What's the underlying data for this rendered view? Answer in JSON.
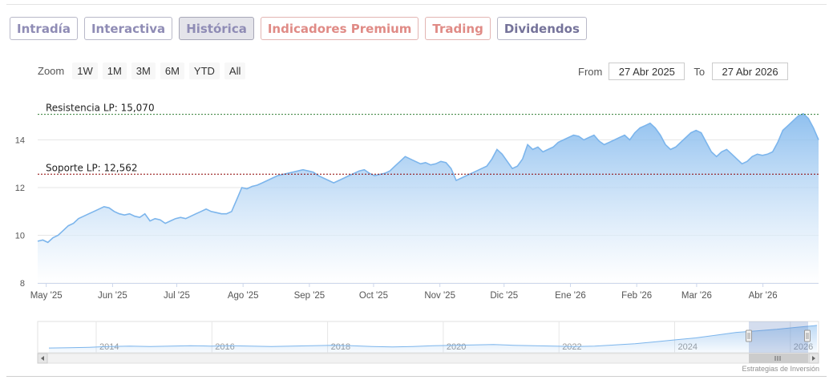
{
  "tabs": [
    {
      "label": "Intradía",
      "style": "normal"
    },
    {
      "label": "Interactiva",
      "style": "normal"
    },
    {
      "label": "Histórica",
      "style": "active"
    },
    {
      "label": "Indicadores Premium",
      "style": "premium"
    },
    {
      "label": "Trading",
      "style": "premium"
    },
    {
      "label": "Dividendos",
      "style": "dark"
    }
  ],
  "zoom": {
    "label": "Zoom",
    "buttons": [
      "1W",
      "1M",
      "3M",
      "6M",
      "YTD",
      "All"
    ]
  },
  "range": {
    "from_label": "From",
    "from_value": "27 Abr 2025",
    "to_label": "To",
    "to_value": "27 Abr 2026"
  },
  "credit": "Estrategias de Inversión",
  "colors": {
    "series_line": "#7cb5ec",
    "series_fill_top": "#7cb5ec",
    "series_fill_bottom": "#ffffff",
    "resistance_line": "#2e7d32",
    "support_line": "#8b0000",
    "tab_text": "#8f8cb5",
    "tab_premium": "#e08b86"
  },
  "chart_data": {
    "type": "area",
    "series": [
      {
        "values": [
          9.75,
          9.8,
          9.7,
          9.9,
          10.0,
          10.2,
          10.4,
          10.5,
          10.7,
          10.8,
          10.9,
          11.0,
          11.1,
          11.2,
          11.15,
          11.0,
          10.9,
          10.85,
          10.9,
          10.8,
          10.75,
          10.9,
          10.6,
          10.7,
          10.65,
          10.5,
          10.6,
          10.7,
          10.75,
          10.7,
          10.8,
          10.9,
          11.0,
          11.1,
          11.0,
          10.95,
          10.9,
          10.9,
          11.0,
          11.5,
          12.0,
          11.95,
          12.05,
          12.1,
          12.2,
          12.3,
          12.4,
          12.5,
          12.55,
          12.6,
          12.65,
          12.7,
          12.75,
          12.7,
          12.65,
          12.5,
          12.4,
          12.3,
          12.2,
          12.3,
          12.4,
          12.5,
          12.6,
          12.7,
          12.75,
          12.6,
          12.5,
          12.55,
          12.6,
          12.7,
          12.9,
          13.1,
          13.3,
          13.2,
          13.1,
          13.0,
          13.05,
          12.95,
          13.0,
          13.1,
          13.05,
          12.8,
          12.3,
          12.4,
          12.5,
          12.6,
          12.7,
          12.8,
          12.9,
          13.2,
          13.6,
          13.4,
          13.1,
          12.8,
          12.9,
          13.2,
          13.8,
          13.6,
          13.7,
          13.5,
          13.6,
          13.7,
          13.9,
          14.0,
          14.1,
          14.2,
          14.15,
          14.0,
          14.1,
          14.2,
          13.95,
          13.8,
          13.9,
          14.0,
          14.1,
          14.2,
          14.0,
          14.3,
          14.5,
          14.6,
          14.7,
          14.5,
          14.2,
          13.8,
          13.6,
          13.7,
          13.9,
          14.1,
          14.3,
          14.4,
          14.3,
          13.9,
          13.5,
          13.3,
          13.5,
          13.6,
          13.4,
          13.2,
          13.0,
          13.1,
          13.3,
          13.4,
          13.35,
          13.4,
          13.5,
          13.9,
          14.4,
          14.6,
          14.8,
          15.0,
          15.1,
          14.9,
          14.5,
          14.0
        ]
      }
    ],
    "x_start": "2025-04-27",
    "x_end": "2026-04-27",
    "x_ticks": [
      "May '25",
      "Jun '25",
      "Jul '25",
      "Ago '25",
      "Sep '25",
      "Oct '25",
      "Nov '25",
      "Dic '25",
      "Ene '26",
      "Feb '26",
      "Mar '26",
      "Abr '26"
    ],
    "x_tick_dates": [
      "2025-05-01",
      "2025-06-01",
      "2025-07-01",
      "2025-08-01",
      "2025-09-01",
      "2025-10-01",
      "2025-11-01",
      "2025-12-01",
      "2026-01-01",
      "2026-02-01",
      "2026-03-01",
      "2026-04-01"
    ],
    "y_ticks": [
      8,
      10,
      12,
      14
    ],
    "ylim": [
      8,
      16
    ],
    "grid": true,
    "reference_lines": [
      {
        "label": "Resistencia LP: 15,070",
        "value": 15.07,
        "style": "resistance"
      },
      {
        "label": "Soporte LP: 12,562",
        "value": 12.562,
        "style": "support"
      }
    ],
    "navigator": {
      "year_labels": [
        "2014",
        "2016",
        "2018",
        "2020",
        "2022",
        "2024",
        "2026"
      ],
      "values": [
        9.2,
        9.3,
        9.4,
        9.6,
        9.7,
        9.6,
        9.7,
        9.8,
        9.7,
        9.8,
        9.7,
        9.6,
        9.7,
        9.8,
        9.9,
        9.8,
        9.6,
        9.5,
        9.6,
        9.8,
        9.9,
        10.0,
        10.1,
        9.9,
        9.8,
        9.7,
        9.6,
        9.7,
        10.0,
        10.3,
        10.8,
        11.3,
        11.8,
        12.5,
        13.2,
        13.6,
        14.0,
        14.5,
        15.0
      ]
    }
  }
}
